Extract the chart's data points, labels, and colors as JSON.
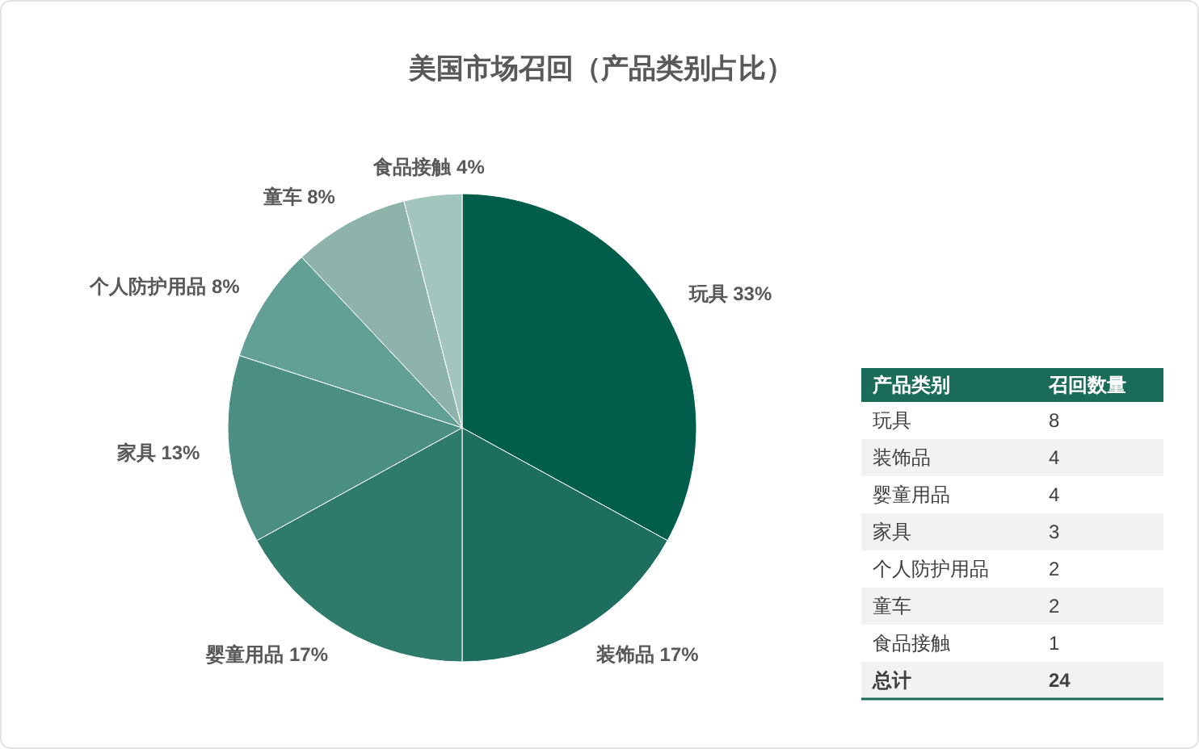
{
  "chart_data": [
    {
      "type": "pie",
      "title": "美国市场召回（产品类别占比）",
      "categories": [
        "玩具",
        "装饰品",
        "婴童用品",
        "家具",
        "个人防护用品",
        "童车",
        "食品接触"
      ],
      "values": [
        33,
        17,
        17,
        13,
        8,
        8,
        4
      ],
      "value_labels": [
        "33%",
        "17%",
        "17%",
        "13%",
        "8%",
        "8%",
        "4%"
      ],
      "colors": [
        "#005e4b",
        "#1d6e5f",
        "#2e7a6b",
        "#4a8f81",
        "#62a096",
        "#8db3ab",
        "#a2c6be"
      ]
    },
    {
      "type": "other",
      "categories": [
        "玩具",
        "装饰品",
        "婴童用品",
        "家具",
        "个人防护用品",
        "童车",
        "食品接触"
      ],
      "values": [
        8,
        4,
        4,
        3,
        2,
        2,
        1
      ],
      "data_labels": true,
      "totals": [
        "24"
      ],
      "annotations": [
        "产品类别",
        "召回数量",
        "总计"
      ]
    }
  ]
}
